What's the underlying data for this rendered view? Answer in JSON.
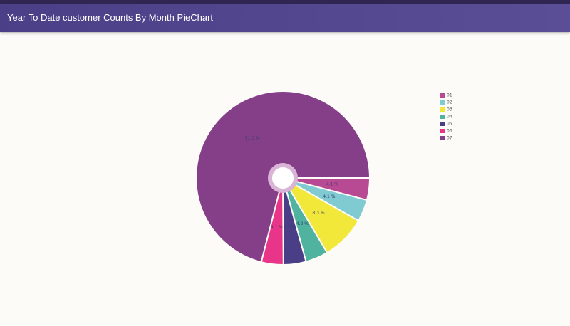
{
  "header": {
    "title": "Year To Date customer Counts By Month PieChart"
  },
  "chart_data": {
    "type": "pie",
    "categories": [
      "01",
      "02",
      "03",
      "04",
      "05",
      "06",
      "07"
    ],
    "values": [
      4.1,
      4.1,
      8.3,
      4.2,
      4.2,
      4.1,
      71.0
    ],
    "value_labels": [
      "4.1 %",
      "4.1 %",
      "8.3 %",
      "4.2 %",
      "4.2 %",
      "4.1 %",
      "71.0 %"
    ],
    "colors": [
      "#b84a93",
      "#7fcbd1",
      "#f2e83a",
      "#4fb39f",
      "#4a3f86",
      "#e8358a",
      "#843f88"
    ],
    "legend": "right"
  }
}
